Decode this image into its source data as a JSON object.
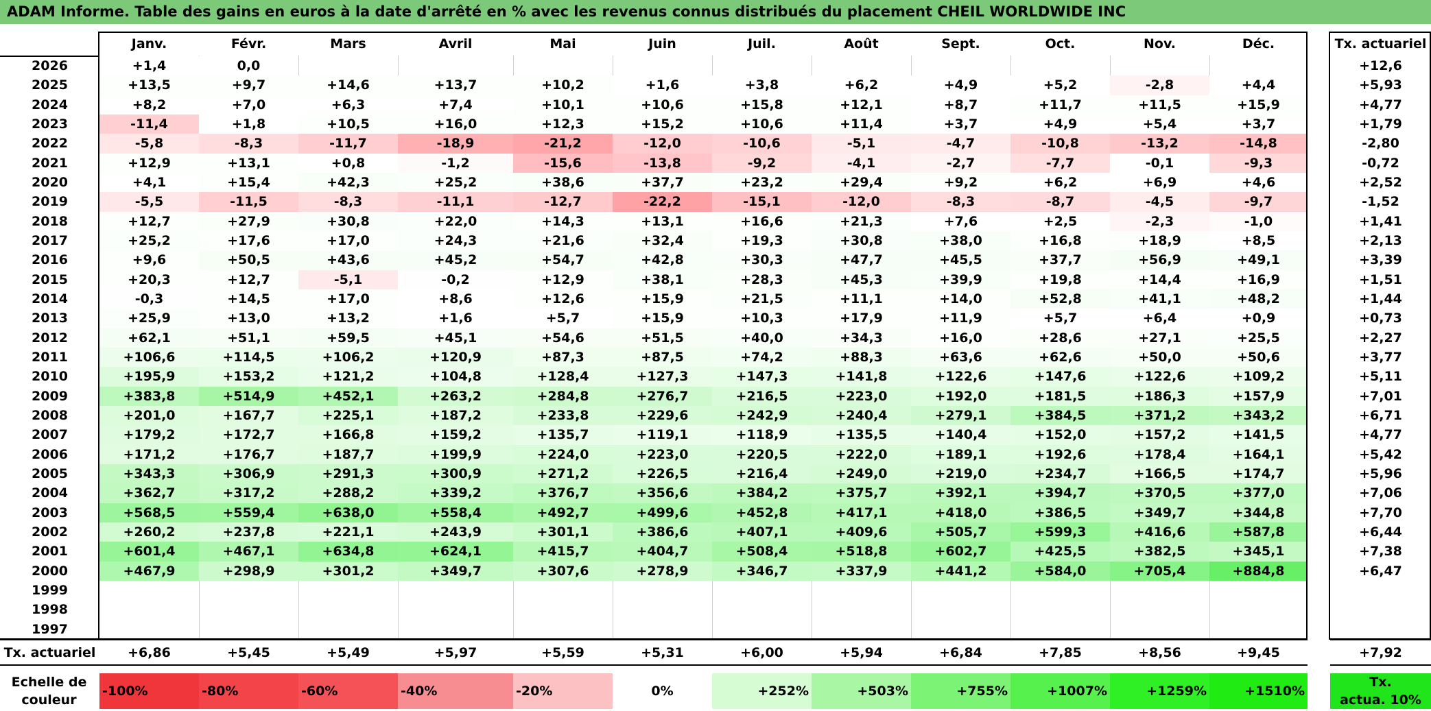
{
  "title": "ADAM Informe. Table des gains en euros à la date d'arrêté en % avec les revenus connus distribués du placement CHEIL WORLDWIDE INC",
  "months": [
    "Janv.",
    "Févr.",
    "Mars",
    "Avril",
    "Mai",
    "Juin",
    "Juil.",
    "Août",
    "Sept.",
    "Oct.",
    "Nov.",
    "Déc."
  ],
  "tx_header": "Tx. actuariel",
  "rows": [
    {
      "year": "2026",
      "values": [
        "+1,4",
        "0,0",
        "",
        "",
        "",
        "",
        "",
        "",
        "",
        "",
        "",
        ""
      ],
      "tx": "+12,6"
    },
    {
      "year": "2025",
      "values": [
        "+13,5",
        "+9,7",
        "+14,6",
        "+13,7",
        "+10,2",
        "+1,6",
        "+3,8",
        "+6,2",
        "+4,9",
        "+5,2",
        "-2,8",
        "+4,4"
      ],
      "tx": "+5,93"
    },
    {
      "year": "2024",
      "values": [
        "+8,2",
        "+7,0",
        "+6,3",
        "+7,4",
        "+10,1",
        "+10,6",
        "+15,8",
        "+12,1",
        "+8,7",
        "+11,7",
        "+11,5",
        "+15,9"
      ],
      "tx": "+4,77"
    },
    {
      "year": "2023",
      "values": [
        "-11,4",
        "+1,8",
        "+10,5",
        "+16,0",
        "+12,3",
        "+15,2",
        "+10,6",
        "+11,4",
        "+3,7",
        "+4,9",
        "+5,4",
        "+3,7"
      ],
      "tx": "+1,79"
    },
    {
      "year": "2022",
      "values": [
        "-5,8",
        "-8,3",
        "-11,7",
        "-18,9",
        "-21,2",
        "-12,0",
        "-10,6",
        "-5,1",
        "-4,7",
        "-10,8",
        "-13,2",
        "-14,8"
      ],
      "tx": "-2,80"
    },
    {
      "year": "2021",
      "values": [
        "+12,9",
        "+13,1",
        "+0,8",
        "-1,2",
        "-15,6",
        "-13,8",
        "-9,2",
        "-4,1",
        "-2,7",
        "-7,7",
        "-0,1",
        "-9,3"
      ],
      "tx": "-0,72"
    },
    {
      "year": "2020",
      "values": [
        "+4,1",
        "+15,4",
        "+42,3",
        "+25,2",
        "+38,6",
        "+37,7",
        "+23,2",
        "+29,4",
        "+9,2",
        "+6,2",
        "+6,9",
        "+4,6"
      ],
      "tx": "+2,52"
    },
    {
      "year": "2019",
      "values": [
        "-5,5",
        "-11,5",
        "-8,3",
        "-11,1",
        "-12,7",
        "-22,2",
        "-15,1",
        "-12,0",
        "-8,3",
        "-8,7",
        "-4,5",
        "-9,7"
      ],
      "tx": "-1,52"
    },
    {
      "year": "2018",
      "values": [
        "+12,7",
        "+27,9",
        "+30,8",
        "+22,0",
        "+14,3",
        "+13,1",
        "+16,6",
        "+21,3",
        "+7,6",
        "+2,5",
        "-2,3",
        "-1,0"
      ],
      "tx": "+1,41"
    },
    {
      "year": "2017",
      "values": [
        "+25,2",
        "+17,6",
        "+17,0",
        "+24,3",
        "+21,6",
        "+32,4",
        "+19,3",
        "+30,8",
        "+38,0",
        "+16,8",
        "+18,9",
        "+8,5"
      ],
      "tx": "+2,13"
    },
    {
      "year": "2016",
      "values": [
        "+9,6",
        "+50,5",
        "+43,6",
        "+45,2",
        "+54,7",
        "+42,8",
        "+30,3",
        "+47,7",
        "+45,5",
        "+37,7",
        "+56,9",
        "+49,1"
      ],
      "tx": "+3,39"
    },
    {
      "year": "2015",
      "values": [
        "+20,3",
        "+12,7",
        "-5,1",
        "-0,2",
        "+12,9",
        "+38,1",
        "+28,3",
        "+45,3",
        "+39,9",
        "+19,8",
        "+14,4",
        "+16,9"
      ],
      "tx": "+1,51"
    },
    {
      "year": "2014",
      "values": [
        "-0,3",
        "+14,5",
        "+17,0",
        "+8,6",
        "+12,6",
        "+15,9",
        "+21,5",
        "+11,1",
        "+14,0",
        "+52,8",
        "+41,1",
        "+48,2"
      ],
      "tx": "+1,44"
    },
    {
      "year": "2013",
      "values": [
        "+25,9",
        "+13,0",
        "+13,2",
        "+1,6",
        "+5,7",
        "+15,9",
        "+10,3",
        "+17,9",
        "+11,9",
        "+5,7",
        "+6,4",
        "+0,9"
      ],
      "tx": "+0,73"
    },
    {
      "year": "2012",
      "values": [
        "+62,1",
        "+51,1",
        "+59,5",
        "+45,1",
        "+54,6",
        "+51,5",
        "+40,0",
        "+34,3",
        "+16,0",
        "+28,6",
        "+27,1",
        "+25,5"
      ],
      "tx": "+2,27"
    },
    {
      "year": "2011",
      "values": [
        "+106,6",
        "+114,5",
        "+106,2",
        "+120,9",
        "+87,3",
        "+87,5",
        "+74,2",
        "+88,3",
        "+63,6",
        "+62,6",
        "+50,0",
        "+50,6"
      ],
      "tx": "+3,77"
    },
    {
      "year": "2010",
      "values": [
        "+195,9",
        "+153,2",
        "+121,2",
        "+104,8",
        "+128,4",
        "+127,3",
        "+147,3",
        "+141,8",
        "+122,6",
        "+147,6",
        "+122,6",
        "+109,2"
      ],
      "tx": "+5,11"
    },
    {
      "year": "2009",
      "values": [
        "+383,8",
        "+514,9",
        "+452,1",
        "+263,2",
        "+284,8",
        "+276,7",
        "+216,5",
        "+223,0",
        "+192,0",
        "+181,5",
        "+186,3",
        "+157,9"
      ],
      "tx": "+7,01"
    },
    {
      "year": "2008",
      "values": [
        "+201,0",
        "+167,7",
        "+225,1",
        "+187,2",
        "+233,8",
        "+229,6",
        "+242,9",
        "+240,4",
        "+279,1",
        "+384,5",
        "+371,2",
        "+343,2"
      ],
      "tx": "+6,71"
    },
    {
      "year": "2007",
      "values": [
        "+179,2",
        "+172,7",
        "+166,8",
        "+159,2",
        "+135,7",
        "+119,1",
        "+118,9",
        "+135,5",
        "+140,4",
        "+152,0",
        "+157,2",
        "+141,5"
      ],
      "tx": "+4,77"
    },
    {
      "year": "2006",
      "values": [
        "+171,2",
        "+176,7",
        "+187,7",
        "+199,9",
        "+224,0",
        "+223,0",
        "+220,5",
        "+222,0",
        "+189,1",
        "+192,6",
        "+178,4",
        "+164,1"
      ],
      "tx": "+5,42"
    },
    {
      "year": "2005",
      "values": [
        "+343,3",
        "+306,9",
        "+291,3",
        "+300,9",
        "+271,2",
        "+226,5",
        "+216,4",
        "+249,0",
        "+219,0",
        "+234,7",
        "+166,5",
        "+174,7"
      ],
      "tx": "+5,96"
    },
    {
      "year": "2004",
      "values": [
        "+362,7",
        "+317,2",
        "+288,2",
        "+339,2",
        "+376,7",
        "+356,6",
        "+384,2",
        "+375,7",
        "+392,1",
        "+394,7",
        "+370,5",
        "+377,0"
      ],
      "tx": "+7,06"
    },
    {
      "year": "2003",
      "values": [
        "+568,5",
        "+559,4",
        "+638,0",
        "+558,4",
        "+492,7",
        "+499,6",
        "+452,8",
        "+417,1",
        "+418,0",
        "+386,5",
        "+349,7",
        "+344,8"
      ],
      "tx": "+7,70"
    },
    {
      "year": "2002",
      "values": [
        "+260,2",
        "+237,8",
        "+221,1",
        "+243,9",
        "+301,1",
        "+386,6",
        "+407,1",
        "+409,6",
        "+505,7",
        "+599,3",
        "+416,6",
        "+587,8"
      ],
      "tx": "+6,44"
    },
    {
      "year": "2001",
      "values": [
        "+601,4",
        "+467,1",
        "+634,8",
        "+624,1",
        "+415,7",
        "+404,7",
        "+508,4",
        "+518,8",
        "+602,7",
        "+425,5",
        "+382,5",
        "+345,1"
      ],
      "tx": "+7,38"
    },
    {
      "year": "2000",
      "values": [
        "+467,9",
        "+298,9",
        "+301,2",
        "+349,7",
        "+307,6",
        "+278,9",
        "+346,7",
        "+337,9",
        "+441,2",
        "+584,0",
        "+705,4",
        "+884,8"
      ],
      "tx": "+6,47"
    },
    {
      "year": "1999",
      "values": [
        "",
        "",
        "",
        "",
        "",
        "",
        "",
        "",
        "",
        "",
        "",
        ""
      ],
      "tx": ""
    },
    {
      "year": "1998",
      "values": [
        "",
        "",
        "",
        "",
        "",
        "",
        "",
        "",
        "",
        "",
        "",
        ""
      ],
      "tx": ""
    },
    {
      "year": "1997",
      "values": [
        "",
        "",
        "",
        "",
        "",
        "",
        "",
        "",
        "",
        "",
        "",
        ""
      ],
      "tx": ""
    }
  ],
  "footer": {
    "label": "Tx. actuariel",
    "values": [
      "+6,86",
      "+5,45",
      "+5,49",
      "+5,97",
      "+5,59",
      "+5,31",
      "+6,00",
      "+5,94",
      "+6,84",
      "+7,85",
      "+8,56",
      "+9,45"
    ],
    "tx": "+7,92"
  },
  "legend": {
    "label_line1": "Echelle de",
    "label_line2": "couleur",
    "items": [
      {
        "text": "-100%",
        "color": "#f0353b"
      },
      {
        "text": "-80%",
        "color": "#f24449"
      },
      {
        "text": "-60%",
        "color": "#f45257"
      },
      {
        "text": "-40%",
        "color": "#f78d91"
      },
      {
        "text": "-20%",
        "color": "#fbc1c3"
      },
      {
        "text": "0%",
        "color": "#ffffff"
      },
      {
        "text": "+252%",
        "color": "#d6fcd4"
      },
      {
        "text": "+503%",
        "color": "#a9f7a4"
      },
      {
        "text": "+755%",
        "color": "#7cf375"
      },
      {
        "text": "+1007%",
        "color": "#57f14e"
      },
      {
        "text": "+1259%",
        "color": "#2ff024"
      },
      {
        "text": "+1510%",
        "color": "#20ec13"
      }
    ],
    "tx_line1": "Tx.",
    "tx_line2": "actua. 10%",
    "tx_color": "#1fe51a"
  },
  "colors": {
    "title_bg": "#7cc97a",
    "negative_max": "#f25a5f",
    "positive_max": "#22ee16"
  }
}
